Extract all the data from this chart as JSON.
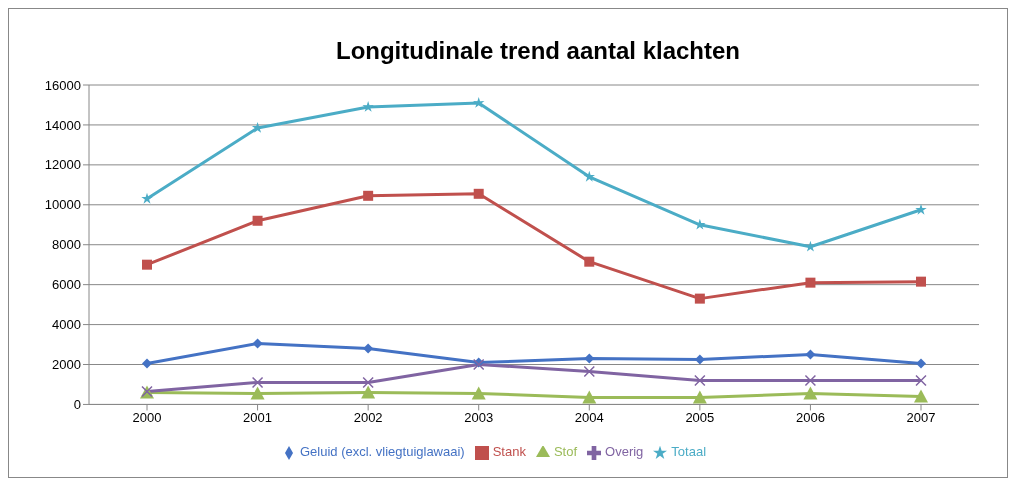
{
  "chart_data": {
    "type": "line",
    "title": "Longitudinale trend aantal klachten",
    "categories": [
      "2000",
      "2001",
      "2002",
      "2003",
      "2004",
      "2005",
      "2006",
      "2007"
    ],
    "series": [
      {
        "name": "Geluid (excl. vliegtuiglawaai)",
        "color": "#4472c4",
        "marker": "diamond",
        "values": [
          2050,
          3050,
          2800,
          2100,
          2300,
          2250,
          2500,
          2050
        ]
      },
      {
        "name": "Stank",
        "color": "#c0504d",
        "marker": "square",
        "values": [
          7000,
          9200,
          10450,
          10550,
          7150,
          5300,
          6100,
          6150
        ]
      },
      {
        "name": "Stof",
        "color": "#9bbb59",
        "marker": "triangle",
        "values": [
          600,
          550,
          600,
          550,
          350,
          350,
          550,
          400
        ]
      },
      {
        "name": "Overig",
        "color": "#8064a2",
        "marker": "cross",
        "values": [
          650,
          1100,
          1100,
          2000,
          1650,
          1200,
          1200,
          1200
        ]
      },
      {
        "name": "Totaal",
        "color": "#4bacc6",
        "marker": "star",
        "values": [
          10300,
          13850,
          14900,
          15100,
          11400,
          9000,
          7900,
          9750
        ]
      }
    ],
    "ylim": [
      0,
      16000
    ],
    "yticks": [
      0,
      2000,
      4000,
      6000,
      8000,
      10000,
      12000,
      14000,
      16000
    ],
    "grid": "y",
    "legend": "bottom",
    "line_style": "solid"
  }
}
